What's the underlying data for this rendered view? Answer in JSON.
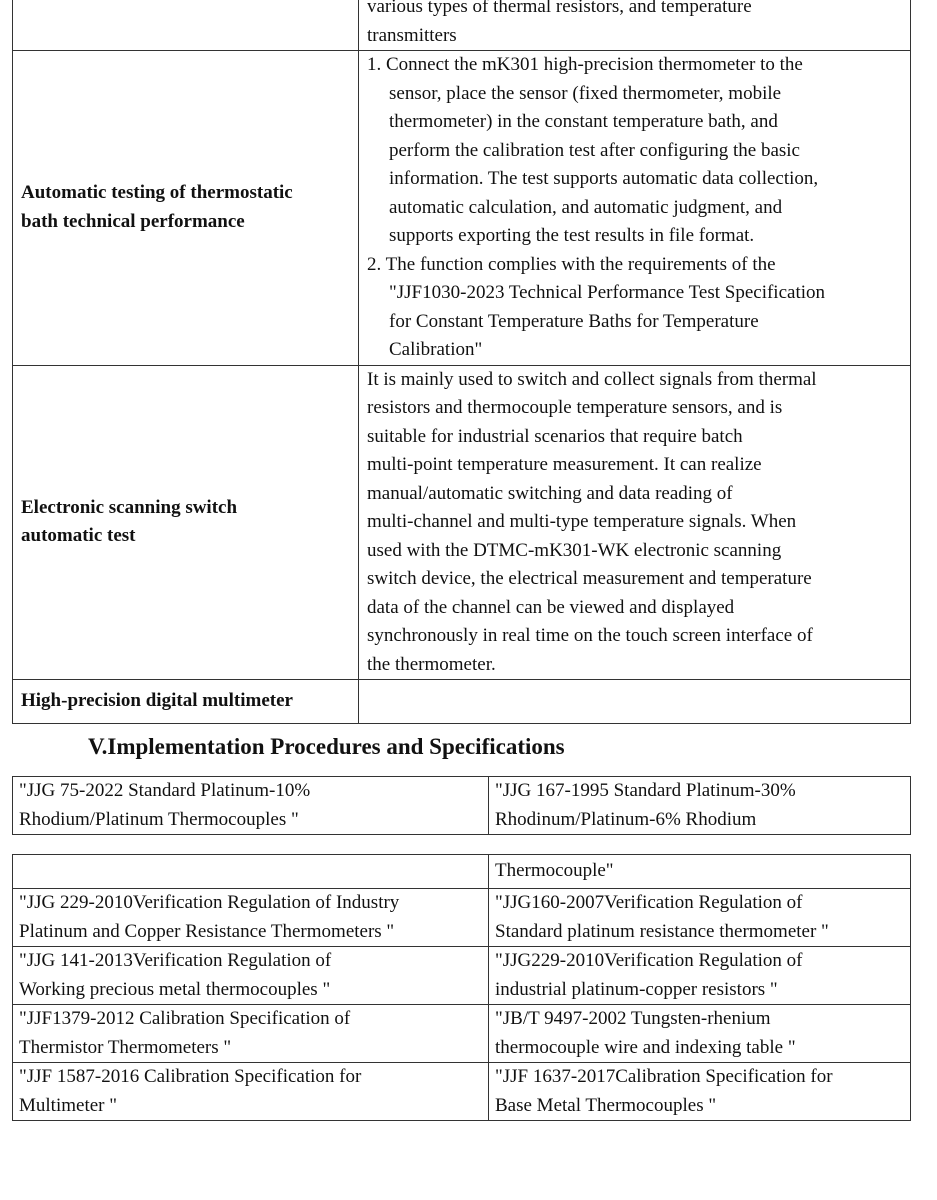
{
  "features_table": {
    "rows": [
      {
        "name_lines": [],
        "desc_lines": [
          {
            "t": "various types of thermal resistors, and temperature"
          },
          {
            "t": "transmitters"
          }
        ]
      },
      {
        "name_lines": [
          "Automatic testing of thermostatic",
          "bath technical performance"
        ],
        "desc_lines": [
          {
            "t": "1. Connect the mK301 high-precision thermometer to the"
          },
          {
            "t": "sensor, place the sensor (fixed thermometer, mobile",
            "i": 1
          },
          {
            "t": "thermometer) in the constant temperature bath, and",
            "i": 1
          },
          {
            "t": "perform the calibration test after configuring the basic",
            "i": 1
          },
          {
            "t": "information. The test supports automatic data collection,",
            "i": 1
          },
          {
            "t": "automatic calculation, and automatic judgment, and",
            "i": 1
          },
          {
            "t": "supports exporting the test results in file format.",
            "i": 1
          },
          {
            "t": "2. The function complies with the requirements of the"
          },
          {
            "t": "\"JJF1030-2023 Technical Performance Test Specification",
            "i": 1
          },
          {
            "t": "for Constant Temperature Baths for Temperature",
            "i": 1
          },
          {
            "t": "Calibration\"",
            "i": 1
          }
        ]
      },
      {
        "name_lines": [
          "Electronic scanning switch",
          "automatic test"
        ],
        "desc_lines": [
          {
            "t": "It is mainly used to switch and collect signals from thermal"
          },
          {
            "t": "resistors and thermocouple temperature sensors, and is"
          },
          {
            "t": "suitable for industrial scenarios that require batch"
          },
          {
            "t": "multi-point temperature measurement. It can realize"
          },
          {
            "t": "manual/automatic switching and data reading of"
          },
          {
            "t": "multi-channel and multi-type temperature signals. When"
          },
          {
            "t": "used with the DTMC-mK301-WK electronic scanning"
          },
          {
            "t": "switch device, the electrical measurement and temperature"
          },
          {
            "t": "data of the channel can be viewed and displayed"
          },
          {
            "t": "synchronously in real time on the touch screen interface of"
          },
          {
            "t": "the thermometer."
          }
        ]
      },
      {
        "name_lines": [
          "High-precision digital multimeter"
        ],
        "desc_lines": []
      }
    ]
  },
  "section_heading": "V.Implementation Procedures and Specifications",
  "specs_table_a": {
    "rows": [
      [
        [
          " \"JJG 75-2022 Standard Platinum-10%",
          "Rhodium/Platinum Thermocouples \""
        ],
        [
          " \"JJG 167-1995 Standard Platinum-30%",
          "Rhodinum/Platinum-6% Rhodium"
        ]
      ]
    ]
  },
  "specs_table_b": {
    "rows": [
      [
        [],
        [
          "Thermocouple\""
        ]
      ],
      [
        [
          " \"JJG 229-2010Verification Regulation of Industry",
          "Platinum and Copper Resistance Thermometers \""
        ],
        [
          " \"JJG160-2007Verification Regulation of",
          "Standard platinum resistance thermometer \""
        ]
      ],
      [
        [
          " \"JJG 141-2013Verification Regulation of",
          "Working precious metal thermocouples \""
        ],
        [
          " \"JJG229-2010Verification Regulation of",
          "industrial platinum-copper resistors \""
        ]
      ],
      [
        [
          " \"JJF1379-2012 Calibration Specification of",
          "Thermistor Thermometers \""
        ],
        [
          " \"JB/T 9497-2002 Tungsten-rhenium",
          "thermocouple wire and indexing table \""
        ]
      ],
      [
        [
          " \"JJF 1587-2016 Calibration Specification for",
          "Multimeter \""
        ],
        [
          " \"JJF 1637-2017Calibration Specification for",
          "Base Metal Thermocouples \""
        ]
      ]
    ]
  }
}
